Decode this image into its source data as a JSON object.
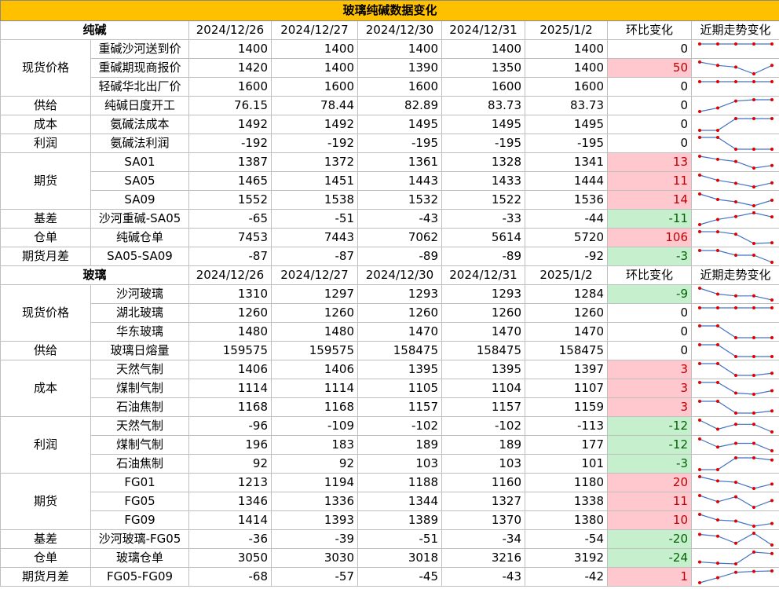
{
  "title": "玻璃纯碱数据变化",
  "sections": [
    {
      "name": "纯碱",
      "headers": [
        "2024/12/26",
        "2024/12/27",
        "2024/12/30",
        "2024/12/31",
        "2025/1/2",
        "环比变化",
        "近期走势变化"
      ],
      "groups": [
        {
          "label": "现货价格",
          "rows": [
            {
              "item": "重碱沙河送到价",
              "values": [
                1400,
                1400,
                1400,
                1400,
                1400
              ],
              "change": 0
            },
            {
              "item": "重碱期现商报价",
              "values": [
                1420,
                1400,
                1390,
                1350,
                1400
              ],
              "change": 50
            },
            {
              "item": "轻碱华北出厂价",
              "values": [
                1600,
                1600,
                1600,
                1600,
                1600
              ],
              "change": 0
            }
          ]
        },
        {
          "label": "供给",
          "rows": [
            {
              "item": "纯碱日度开工",
              "values": [
                76.15,
                78.44,
                82.89,
                83.73,
                83.73
              ],
              "change": 0
            }
          ]
        },
        {
          "label": "成本",
          "rows": [
            {
              "item": "氨碱法成本",
              "values": [
                1492,
                1492,
                1495,
                1495,
                1495
              ],
              "change": 0
            }
          ]
        },
        {
          "label": "利润",
          "rows": [
            {
              "item": "氨碱法利润",
              "values": [
                -192,
                -192,
                -195,
                -195,
                -195
              ],
              "change": 0
            }
          ]
        },
        {
          "label": "期货",
          "rows": [
            {
              "item": "SA01",
              "values": [
                1387,
                1372,
                1361,
                1328,
                1341
              ],
              "change": 13
            },
            {
              "item": "SA05",
              "values": [
                1465,
                1451,
                1443,
                1433,
                1444
              ],
              "change": 11
            },
            {
              "item": "SA09",
              "values": [
                1552,
                1538,
                1532,
                1522,
                1536
              ],
              "change": 14
            }
          ]
        },
        {
          "label": "基差",
          "rows": [
            {
              "item": "沙河重碱-SA05",
              "values": [
                -65,
                -51,
                -43,
                -33,
                -44
              ],
              "change": -11
            }
          ]
        },
        {
          "label": "仓单",
          "rows": [
            {
              "item": "纯碱仓单",
              "values": [
                7453,
                7443,
                7062,
                5614,
                5720
              ],
              "change": 106
            }
          ]
        },
        {
          "label": "期货月差",
          "rows": [
            {
              "item": "SA05-SA09",
              "values": [
                -87,
                -87,
                -89,
                -89,
                -92
              ],
              "change": -3
            }
          ]
        }
      ]
    },
    {
      "name": "玻璃",
      "headers": [
        "2024/12/26",
        "2024/12/27",
        "2024/12/30",
        "2024/12/31",
        "2025/1/2",
        "环比变化",
        "近期走势变化"
      ],
      "groups": [
        {
          "label": "现货价格",
          "rows": [
            {
              "item": "沙河玻璃",
              "values": [
                1310,
                1297,
                1293,
                1293,
                1284
              ],
              "change": -9
            },
            {
              "item": "湖北玻璃",
              "values": [
                1260,
                1260,
                1260,
                1260,
                1260
              ],
              "change": 0
            },
            {
              "item": "华东玻璃",
              "values": [
                1480,
                1480,
                1470,
                1470,
                1470
              ],
              "change": 0
            }
          ]
        },
        {
          "label": "供给",
          "rows": [
            {
              "item": "玻璃日熔量",
              "values": [
                159575,
                159575,
                158475,
                158475,
                158475
              ],
              "change": 0
            }
          ]
        },
        {
          "label": "成本",
          "rows": [
            {
              "item": "天然气制",
              "values": [
                1406,
                1406,
                1395,
                1395,
                1397
              ],
              "change": 3
            },
            {
              "item": "煤制气制",
              "values": [
                1114,
                1114,
                1105,
                1104,
                1107
              ],
              "change": 3
            },
            {
              "item": "石油焦制",
              "values": [
                1168,
                1168,
                1157,
                1157,
                1159
              ],
              "change": 3
            }
          ]
        },
        {
          "label": "利润",
          "rows": [
            {
              "item": "天然气制",
              "values": [
                -96,
                -109,
                -102,
                -102,
                -113
              ],
              "change": -12
            },
            {
              "item": "煤制气制",
              "values": [
                196,
                183,
                189,
                189,
                177
              ],
              "change": -12
            },
            {
              "item": "石油焦制",
              "values": [
                92,
                92,
                103,
                103,
                101
              ],
              "change": -3
            }
          ]
        },
        {
          "label": "期货",
          "rows": [
            {
              "item": "FG01",
              "values": [
                1213,
                1194,
                1188,
                1160,
                1180
              ],
              "change": 20
            },
            {
              "item": "FG05",
              "values": [
                1346,
                1336,
                1344,
                1327,
                1338
              ],
              "change": 11
            },
            {
              "item": "FG09",
              "values": [
                1414,
                1393,
                1389,
                1370,
                1380
              ],
              "change": 10
            }
          ]
        },
        {
          "label": "基差",
          "rows": [
            {
              "item": "沙河玻璃-FG05",
              "values": [
                -36,
                -39,
                -51,
                -34,
                -54
              ],
              "change": -20
            }
          ]
        },
        {
          "label": "仓单",
          "rows": [
            {
              "item": "玻璃仓单",
              "values": [
                3050,
                3030,
                3018,
                3216,
                3192
              ],
              "change": -24
            }
          ]
        },
        {
          "label": "期货月差",
          "rows": [
            {
              "item": "FG05-FG09",
              "values": [
                -68,
                -57,
                -45,
                -43,
                -42
              ],
              "change": 1
            }
          ]
        }
      ]
    }
  ]
}
